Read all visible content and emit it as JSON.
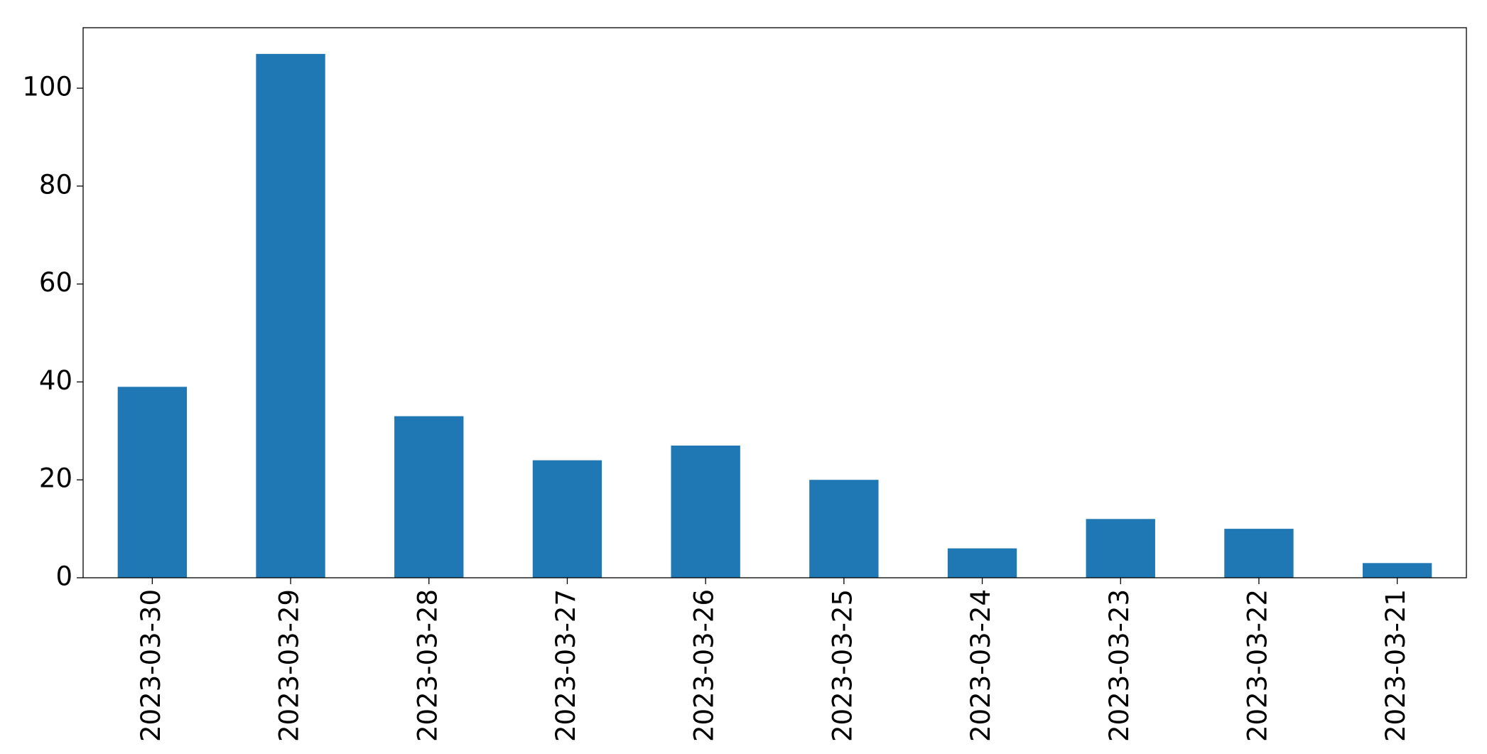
{
  "chart_data": {
    "type": "bar",
    "categories": [
      "2023-03-30",
      "2023-03-29",
      "2023-03-28",
      "2023-03-27",
      "2023-03-26",
      "2023-03-25",
      "2023-03-24",
      "2023-03-23",
      "2023-03-22",
      "2023-03-21"
    ],
    "values": [
      39,
      107,
      33,
      24,
      27,
      20,
      6,
      12,
      10,
      3
    ],
    "color": "#1f77b4",
    "ylim": [
      0,
      112.35
    ],
    "yticks": [
      0,
      20,
      40,
      60,
      80,
      100
    ],
    "grid": false
  }
}
